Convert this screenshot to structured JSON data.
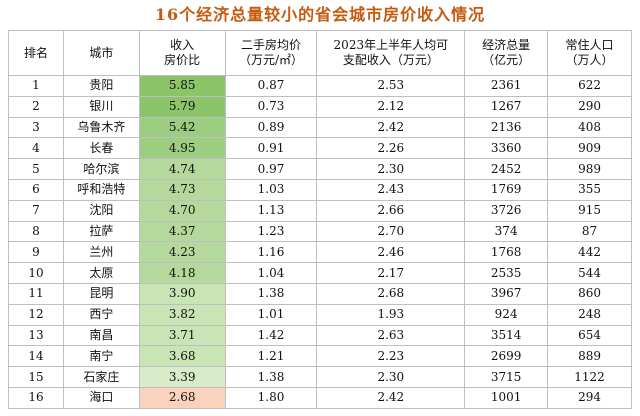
{
  "title": "16个经济总量较小的省会城市房价收入情况",
  "table": {
    "header": [
      "排名",
      "城市",
      "收入\n房价比",
      "二手房均价\n（万元/㎡）",
      "2023年上半年人均可\n支配收入（万元）",
      "经济总量\n（亿元）",
      "常住人口\n（万人）"
    ],
    "rows": [
      [
        "1",
        "贵阳",
        "5.85",
        "0.87",
        "2.53",
        "2361",
        "622"
      ],
      [
        "2",
        "银川",
        "5.79",
        "0.73",
        "2.12",
        "1267",
        "290"
      ],
      [
        "3",
        "乌鲁木齐",
        "5.42",
        "0.89",
        "2.42",
        "2136",
        "408"
      ],
      [
        "4",
        "长春",
        "4.95",
        "0.91",
        "2.26",
        "3360",
        "909"
      ],
      [
        "5",
        "哈尔滨",
        "4.74",
        "0.97",
        "2.30",
        "2452",
        "989"
      ],
      [
        "6",
        "呼和浩特",
        "4.73",
        "1.03",
        "2.43",
        "1769",
        "355"
      ],
      [
        "7",
        "沈阳",
        "4.70",
        "1.13",
        "2.66",
        "3726",
        "915"
      ],
      [
        "8",
        "拉萨",
        "4.37",
        "1.23",
        "2.70",
        "374",
        "87"
      ],
      [
        "9",
        "兰州",
        "4.23",
        "1.16",
        "2.46",
        "1768",
        "442"
      ],
      [
        "10",
        "太原",
        "4.18",
        "1.04",
        "2.17",
        "2535",
        "544"
      ],
      [
        "11",
        "昆明",
        "3.90",
        "1.38",
        "2.68",
        "3967",
        "860"
      ],
      [
        "12",
        "西宁",
        "3.82",
        "1.01",
        "1.93",
        "924",
        "248"
      ],
      [
        "13",
        "南昌",
        "3.71",
        "1.42",
        "2.63",
        "3514",
        "654"
      ],
      [
        "14",
        "南宁",
        "3.68",
        "1.21",
        "2.23",
        "2699",
        "889"
      ],
      [
        "15",
        "石家庄",
        "3.39",
        "1.38",
        "2.30",
        "3715",
        "1122"
      ],
      [
        "16",
        "海口",
        "2.68",
        "1.80",
        "2.42",
        "1001",
        "294"
      ]
    ]
  }
}
